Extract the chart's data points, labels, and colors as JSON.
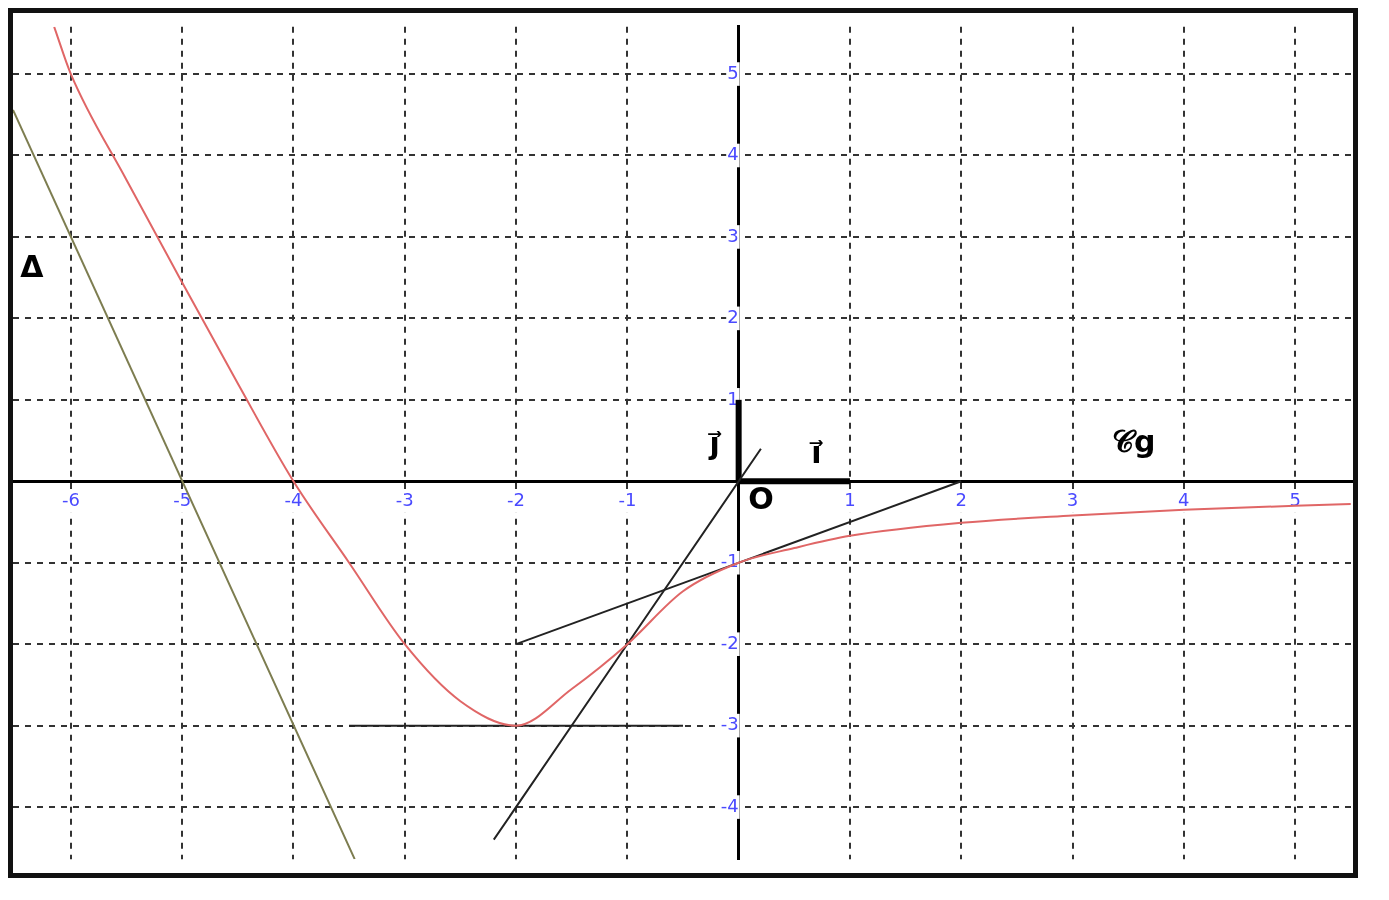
{
  "chart_data": {
    "type": "line",
    "xlim": [
      -6.52,
      5.52
    ],
    "ylim": [
      -4.64,
      5.58
    ],
    "xticks": [
      -6,
      -5,
      -4,
      -3,
      -2,
      -1,
      {
        "value": 0,
        "label": null
      },
      1,
      2,
      3,
      4,
      5
    ],
    "yticks": [
      -4,
      -3,
      -2,
      -1,
      {
        "value": 0,
        "label": null
      },
      1,
      2,
      3,
      4,
      5
    ],
    "grid": true,
    "legend": false,
    "marker": "none",
    "line_style": "solid",
    "series": [
      {
        "color": "#e06666",
        "x": [
          -6.15,
          -6,
          -5.5,
          -5,
          -4.5,
          -4,
          -3.5,
          -3,
          -2.5,
          -2,
          -1.5,
          -1,
          -0.5,
          0,
          0.5,
          1,
          2,
          3,
          4,
          5,
          5.5
        ],
        "values": [
          5.58,
          5,
          3.7,
          2.44,
          1.2,
          0,
          -1,
          -2,
          -2.7,
          -3,
          -2.55,
          -2,
          -1.35,
          -1,
          -0.82,
          -0.67,
          -0.51,
          -0.42,
          -0.35,
          -0.3,
          -0.28
        ]
      },
      {
        "color": "#7d7d50",
        "x": [
          -6.52,
          -3.45
        ],
        "values": [
          4.56,
          -4.64
        ]
      },
      {
        "color": "#222222",
        "x": [
          -3.5,
          -0.5
        ],
        "values": [
          -3,
          -3
        ]
      },
      {
        "color": "#222222",
        "x": [
          -2,
          2
        ],
        "values": [
          -2,
          0
        ]
      },
      {
        "color": "#222222",
        "x": [
          -2.2,
          0.2
        ],
        "values": [
          -4.4,
          0.4
        ]
      },
      {
        "color": "#000000",
        "x": [
          0,
          1
        ],
        "values": [
          0,
          0
        ]
      },
      {
        "color": "#000000",
        "x": [
          0,
          0
        ],
        "values": [
          0,
          1
        ]
      }
    ],
    "annotations": [
      "Δ",
      "𝒞g",
      "O",
      {
        "text": "i⃗",
        "x": 0.5,
        "y": 0
      },
      {
        "text": "j⃗",
        "x": 0,
        "y": 0.5
      }
    ]
  }
}
